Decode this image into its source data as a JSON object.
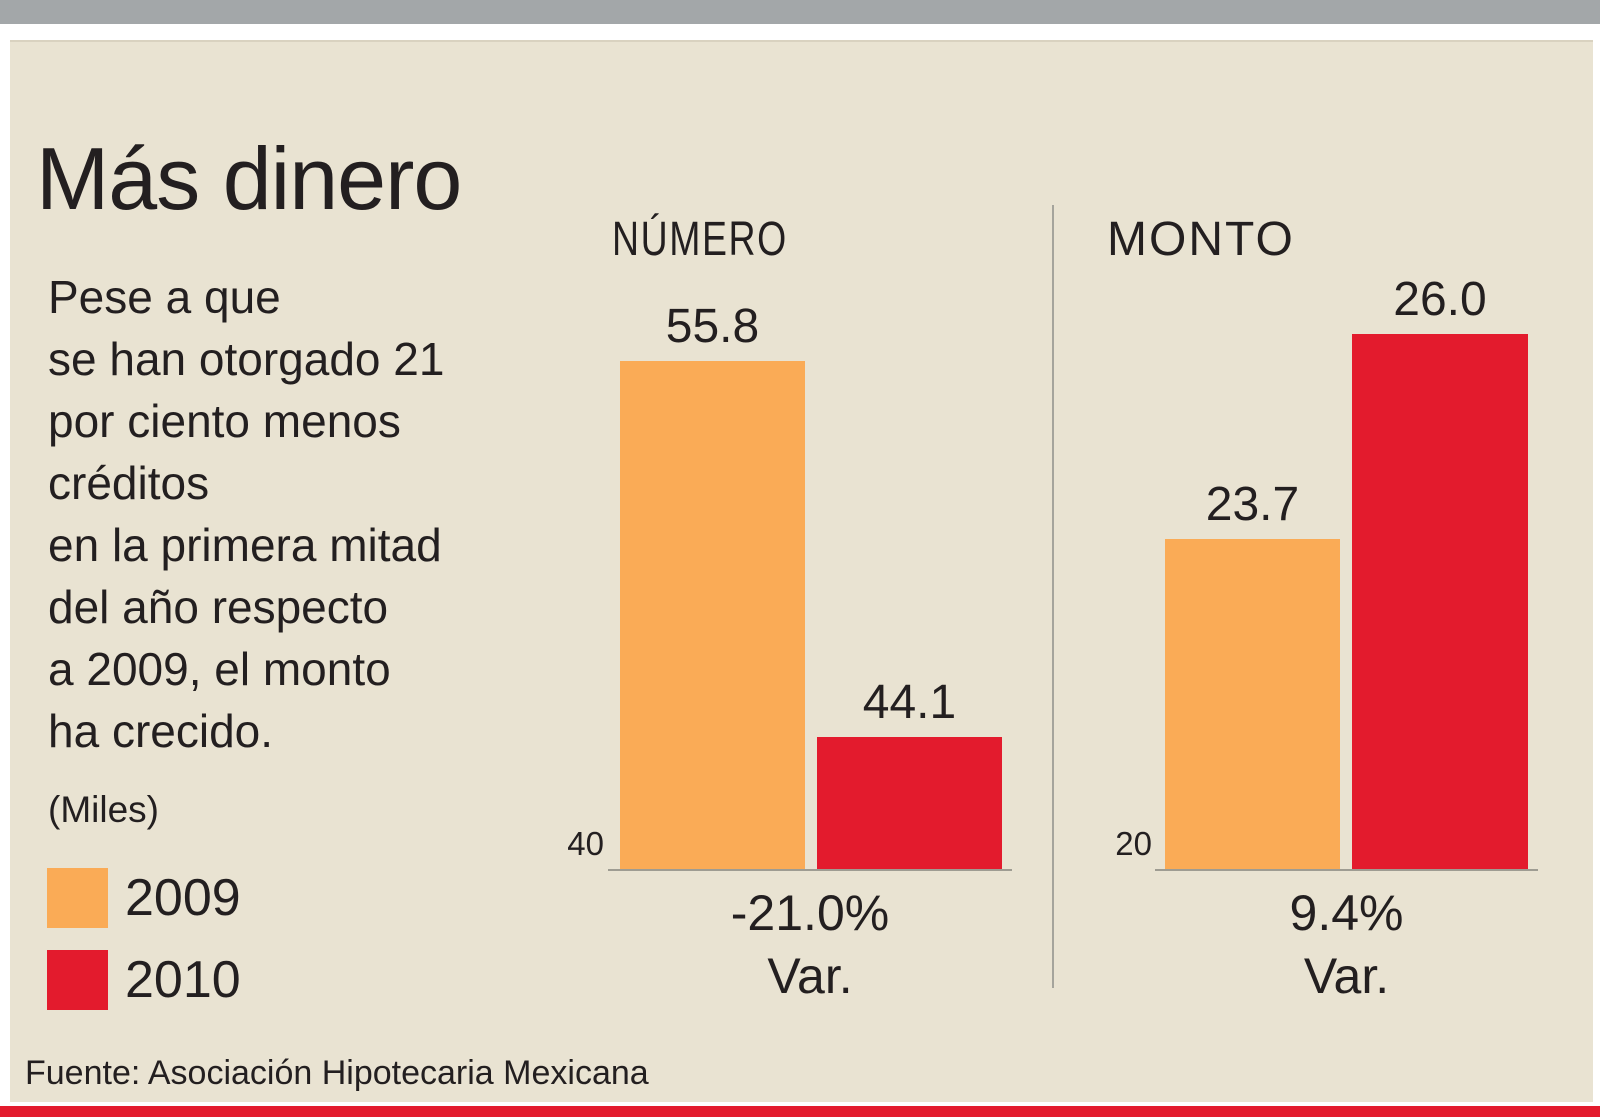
{
  "colors": {
    "orange_2009": "#faab56",
    "red_2010": "#e31b2d",
    "panel_background": "#e9e3d2",
    "top_bar_gray": "#a3a7a9",
    "bottom_bar_red": "#e31b2d",
    "text": "#231f20",
    "axis_line": "#9e9c92"
  },
  "header": {
    "title": "Más dinero"
  },
  "intro": {
    "text": "Pese a que\nse han otorgado 21\npor ciento menos\ncréditos\nen la primera mitad\ndel año respecto\na 2009, el monto\nha crecido.",
    "units_note": "(Miles)"
  },
  "legend": {
    "items": [
      {
        "label": "2009",
        "color": "#faab56"
      },
      {
        "label": "2010",
        "color": "#e31b2d"
      }
    ]
  },
  "source": {
    "text": "Fuente: Asociación Hipotecaria Mexicana"
  },
  "chart_data": [
    {
      "type": "bar",
      "title": "NÚMERO",
      "categories": [
        "2009",
        "2010"
      ],
      "values": [
        55.8,
        44.1
      ],
      "value_labels": [
        "55.8",
        "44.1"
      ],
      "baseline_value": 40,
      "axis_baseline_label": "40",
      "variation_label": "-21.0%",
      "variation_caption": "Var.",
      "series_colors": [
        "#faab56",
        "#e31b2d"
      ],
      "ylim": [
        40,
        56.2
      ],
      "legend_position": "left",
      "grid": false
    },
    {
      "type": "bar",
      "title": "MONTO",
      "categories": [
        "2009",
        "2010"
      ],
      "values": [
        23.7,
        26.0
      ],
      "value_labels": [
        "23.7",
        "26.0"
      ],
      "baseline_value": 20,
      "axis_baseline_label": "20",
      "variation_label": "9.4%",
      "variation_caption": "Var.",
      "series_colors": [
        "#faab56",
        "#e31b2d"
      ],
      "ylim": [
        20,
        26.0
      ],
      "legend_position": "left",
      "grid": false
    }
  ]
}
